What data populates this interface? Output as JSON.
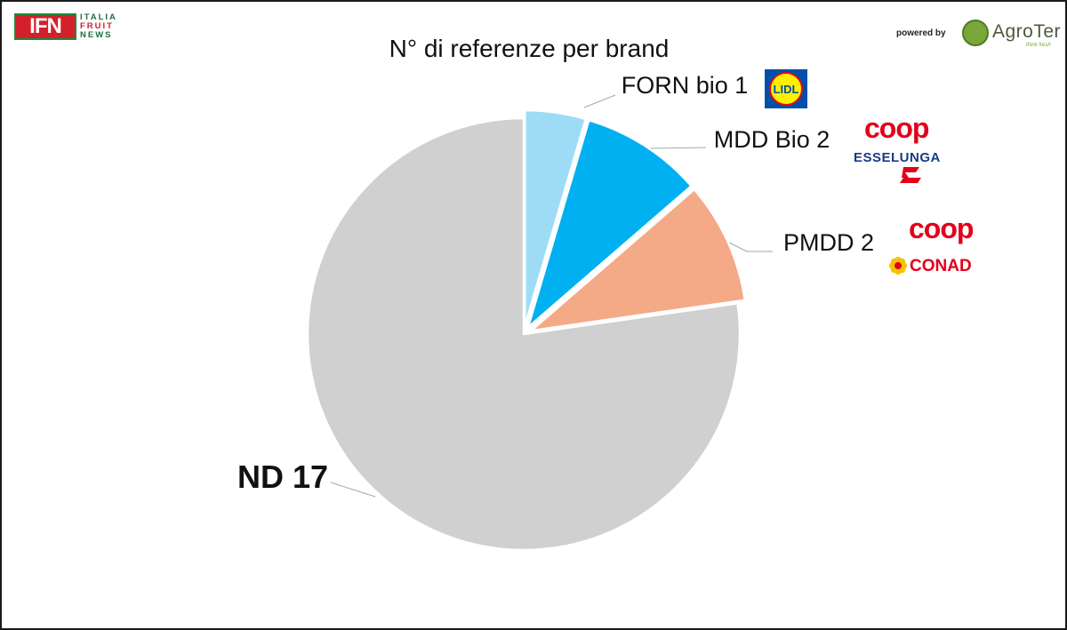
{
  "header": {
    "ifn_logo": {
      "abbr": "IFN",
      "line1": "ITALIA",
      "line2": "FRUIT",
      "line3": "NEWS"
    },
    "powered_by": "powered by",
    "agroter_logo": {
      "name": "AgroTer",
      "tagline": "think fresh"
    }
  },
  "chart_data": {
    "type": "pie",
    "title": "N° di referenze per brand",
    "start_angle_deg": 0,
    "direction": "clockwise",
    "slices": [
      {
        "label": "FORN bio",
        "value": 1,
        "color": "#9edcf6",
        "exploded": true,
        "logos": [
          {
            "name": "lidl-logo",
            "text": "LIDL"
          }
        ]
      },
      {
        "label": "MDD Bio",
        "value": 2,
        "color": "#00b0f0",
        "exploded": true,
        "logos": [
          {
            "name": "coop-logo",
            "text": "coop"
          },
          {
            "name": "esselunga-logo",
            "text": "ESSELUNGA"
          }
        ]
      },
      {
        "label": "PMDD",
        "value": 2,
        "color": "#f4a987",
        "exploded": true,
        "logos": [
          {
            "name": "coop-logo",
            "text": "coop"
          },
          {
            "name": "conad-logo",
            "text": "CONAD"
          }
        ]
      },
      {
        "label": "ND",
        "value": 17,
        "color": "#d0d0d0",
        "exploded": false,
        "logos": []
      }
    ],
    "legend": "none"
  }
}
